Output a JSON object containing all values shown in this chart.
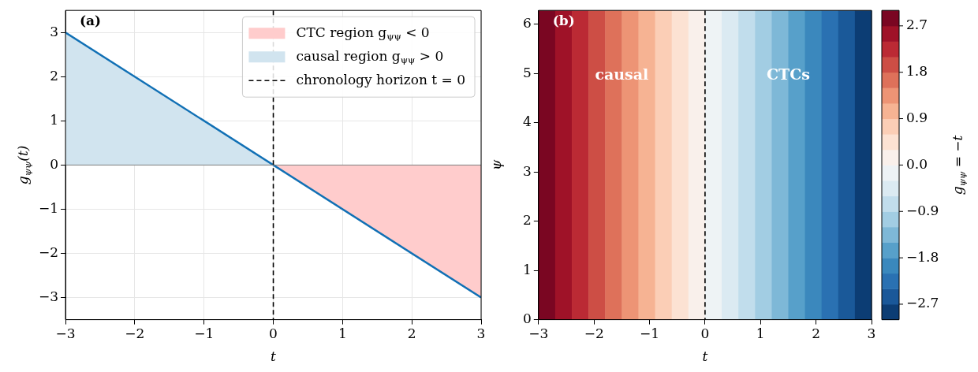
{
  "chart_data": [
    {
      "type": "line",
      "xlabel": "t",
      "ylabel": "g$_{ψψ}$(t)",
      "xlim": [
        -3,
        3
      ],
      "xticks": [
        -3,
        -2,
        -1,
        0,
        1,
        2,
        3
      ],
      "ylim": [
        -3.5,
        3.5
      ],
      "yticks": [
        -3,
        -2,
        -1,
        0,
        1,
        2,
        3
      ],
      "grid": true,
      "legend": "top right",
      "annotations": [
        "(a)"
      ],
      "series": [
        {
          "type": "area",
          "name": "CTC region g$_{ψψ}$ < 0",
          "color": "#ffcccc",
          "x": [
            0,
            3
          ],
          "values": [
            0,
            -3
          ]
        },
        {
          "type": "area",
          "name": "causal region g$_{ψψ}$ > 0",
          "color": "#d1e4ef",
          "x": [
            -3,
            0
          ],
          "values": [
            3,
            0
          ]
        },
        {
          "type": "line",
          "color": "#1170b5",
          "x": [
            -3,
            3
          ],
          "values": [
            3,
            -3
          ]
        }
      ],
      "ref_lines": [
        {
          "axis": "x",
          "value": 0,
          "label": "chronology horizon t = 0",
          "color": "#000000",
          "line_style": "dashed"
        },
        {
          "axis": "y",
          "value": 0,
          "color": "#808080"
        }
      ]
    },
    {
      "type": "heatmap",
      "xlabel": "t",
      "ylabel": "ψ",
      "clabel": "g$_{ψψ}$ = −t",
      "x": [
        -2.85,
        -2.55,
        -2.25,
        -1.95,
        -1.65,
        -1.35,
        -1.05,
        -0.75,
        -0.45,
        -0.15,
        0.15,
        0.45,
        0.75,
        1.05,
        1.35,
        1.65,
        1.95,
        2.25,
        2.55,
        2.85
      ],
      "cells": [
        [
          2.85,
          2.55,
          2.25,
          1.95,
          1.65,
          1.35,
          1.05,
          0.75,
          0.45,
          0.15,
          -0.15,
          -0.45,
          -0.75,
          -1.05,
          -1.35,
          -1.65,
          -1.95,
          -2.25,
          -2.55,
          -2.85
        ]
      ],
      "xlim": [
        -3,
        3
      ],
      "xticks": [
        -3,
        -2,
        -1,
        0,
        1,
        2,
        3
      ],
      "ylim": [
        0,
        6.283
      ],
      "yticks": [
        0,
        1,
        2,
        3,
        4,
        5,
        6
      ],
      "clim": [
        -3,
        3
      ],
      "cticks": [
        2.7,
        1.8,
        0.9,
        {
          "value": 0,
          "label": "0.0"
        },
        -0.9,
        -1.8,
        -2.7
      ],
      "ref_lines": [
        {
          "axis": "x",
          "value": 0,
          "color": "#000000",
          "line_style": "dashed"
        }
      ],
      "annotations": [
        "(b)",
        "causal",
        "CTCs"
      ]
    }
  ]
}
